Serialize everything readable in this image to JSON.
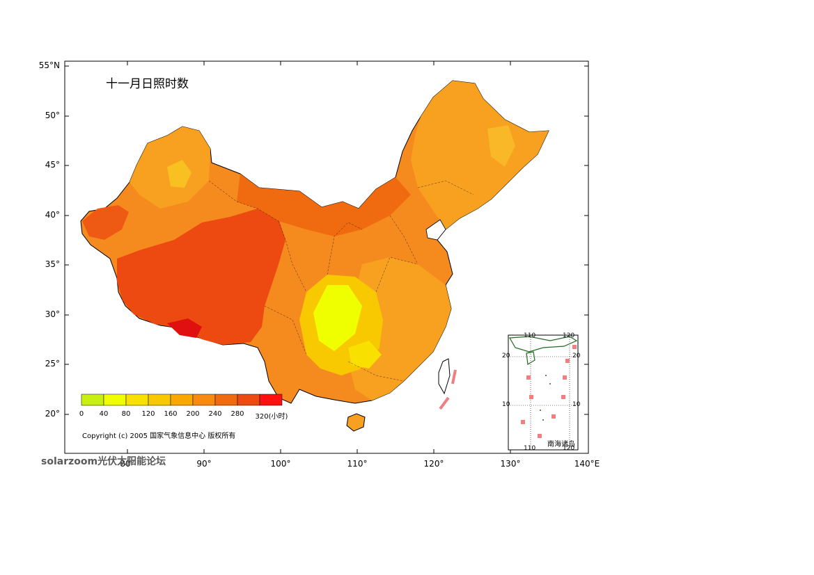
{
  "map": {
    "title": "十一月日照时数",
    "y_axis_labels": [
      "55°N",
      "50°",
      "45°",
      "40°",
      "35°",
      "30°",
      "25°",
      "20°"
    ],
    "x_axis_labels": [
      "80°",
      "90°",
      "100°",
      "110°",
      "120°",
      "130°",
      "140°E"
    ],
    "legend": {
      "labels": [
        "0",
        "40",
        "80",
        "120",
        "160",
        "200",
        "240",
        "280",
        "320(小时)"
      ],
      "colors": [
        "#c8ef10",
        "#f0ff00",
        "#f8e000",
        "#f8c800",
        "#f8a800",
        "#f88a10",
        "#f06a10",
        "#ec4a10",
        "#ff1010"
      ]
    },
    "copyright": "Copyright (c) 2005 国家气象信息中心 版权所有",
    "watermark": "solarzoom光伏太阳能论坛",
    "inset": {
      "label": "南海诸岛",
      "top_ticks": [
        "110",
        "120"
      ],
      "bottom_ticks": [
        "110",
        "120"
      ],
      "left_ticks": [
        "20",
        "10"
      ],
      "right_ticks": [
        "20",
        "10"
      ]
    }
  }
}
